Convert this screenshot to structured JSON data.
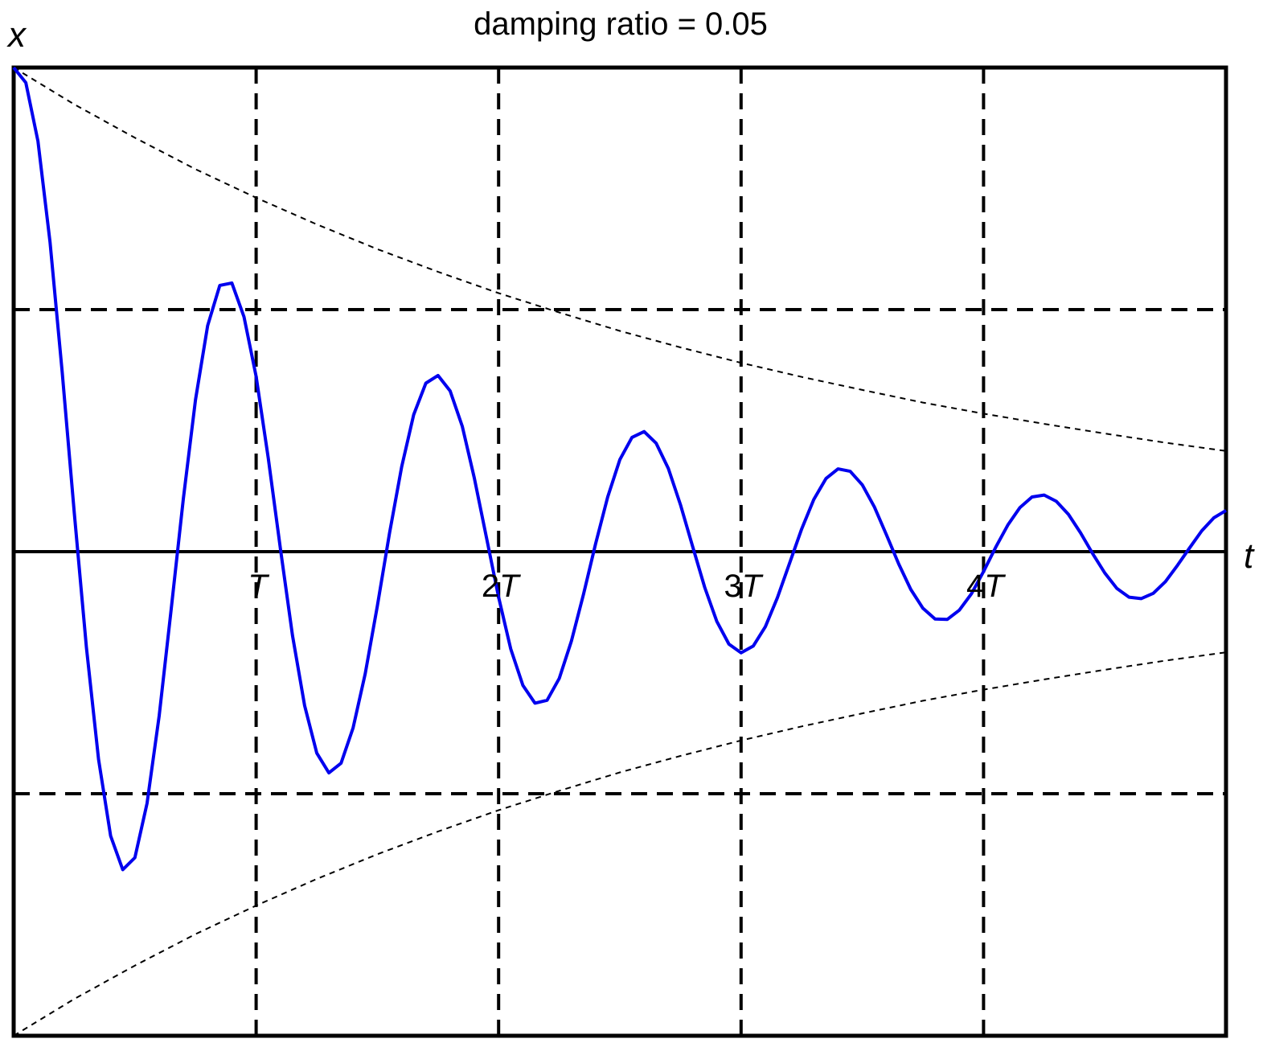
{
  "chart_data": {
    "type": "line",
    "title": "damping ratio = 0.05",
    "xlabel": "t",
    "ylabel": "x",
    "xlim": [
      0,
      5
    ],
    "ylim": [
      -1,
      1
    ],
    "x_unit": "T",
    "damping_ratio": 0.05,
    "xticks": [
      {
        "value": 1,
        "number": "",
        "symbol": "T"
      },
      {
        "value": 2,
        "number": "2",
        "symbol": "T"
      },
      {
        "value": 3,
        "number": "3",
        "symbol": "T"
      },
      {
        "value": 4,
        "number": "4",
        "symbol": "T"
      }
    ],
    "horizontal_reference_lines": [
      0.5,
      -0.5
    ],
    "vertical_reference_lines": [
      1,
      2,
      3,
      4
    ],
    "grid": false,
    "legend": "none",
    "colors": {
      "response": "#0000ee",
      "envelope": "#000000",
      "axes": "#000000"
    },
    "series": [
      {
        "kind": "response",
        "x": [
          0,
          0.05,
          0.1,
          0.15,
          0.2,
          0.25,
          0.3,
          0.35,
          0.4,
          0.45,
          0.5,
          0.55,
          0.6,
          0.65,
          0.7,
          0.75,
          0.8,
          0.85,
          0.9,
          0.95,
          1.0,
          1.05,
          1.1,
          1.15,
          1.2,
          1.25,
          1.3,
          1.35,
          1.4,
          1.45,
          1.5,
          1.55,
          1.6,
          1.65,
          1.7,
          1.75,
          1.8,
          1.85,
          1.9,
          1.95,
          2.0,
          2.05,
          2.1,
          2.15,
          2.2,
          2.25,
          2.3,
          2.35,
          2.4,
          2.45,
          2.5,
          2.55,
          2.6,
          2.65,
          2.7,
          2.75,
          2.8,
          2.85,
          2.9,
          2.95,
          3.0,
          3.05,
          3.1,
          3.15,
          3.2,
          3.25,
          3.3,
          3.35,
          3.4,
          3.45,
          3.5,
          3.55,
          3.6,
          3.65,
          3.7,
          3.75,
          3.8,
          3.85,
          3.9,
          3.95,
          4.0,
          4.05,
          4.1,
          4.15,
          4.2,
          4.25,
          4.3,
          4.35,
          4.4,
          4.45,
          4.5,
          4.55,
          4.6,
          4.65,
          4.7,
          4.75,
          4.8,
          4.85,
          4.9,
          4.95,
          5.0
        ],
        "y": [
          1,
          0.969,
          0.848,
          0.64,
          0.372,
          0.08,
          -0.198,
          -0.429,
          -0.587,
          -0.657,
          -0.632,
          -0.52,
          -0.339,
          -0.118,
          0.11,
          0.314,
          0.467,
          0.55,
          0.555,
          0.485,
          0.362,
          0.193,
          0.006,
          -0.173,
          -0.318,
          -0.416,
          -0.457,
          -0.437,
          -0.364,
          -0.252,
          -0.112,
          0.038,
          0.175,
          0.283,
          0.348,
          0.364,
          0.332,
          0.259,
          0.152,
          0.029,
          -0.094,
          -0.201,
          -0.276,
          -0.313,
          -0.307,
          -0.262,
          -0.185,
          -0.088,
          0.016,
          0.113,
          0.19,
          0.236,
          0.248,
          0.224,
          0.172,
          0.097,
          0.011,
          -0.074,
          -0.144,
          -0.191,
          -0.209,
          -0.195,
          -0.155,
          -0.095,
          -0.024,
          0.047,
          0.108,
          0.151,
          0.171,
          0.166,
          0.138,
          0.092,
          0.034,
          -0.025,
          -0.078,
          -0.117,
          -0.139,
          -0.14,
          -0.121,
          -0.087,
          -0.041,
          0.009,
          0.055,
          0.091,
          0.113,
          0.117,
          0.104,
          0.077,
          0.039,
          -0.004,
          -0.044,
          -0.076,
          -0.094,
          -0.097,
          -0.086,
          -0.062,
          -0.028,
          0.008,
          0.043,
          0.07,
          0.085
        ]
      },
      {
        "kind": "upper envelope",
        "x": [
          0,
          0.25,
          0.5,
          0.75,
          1.0,
          1.25,
          1.5,
          1.75,
          2.0,
          2.25,
          2.5,
          2.75,
          3.0,
          3.25,
          3.5,
          3.75,
          4.0,
          4.25,
          4.5,
          4.75,
          5.0
        ],
        "y": [
          1,
          0.924,
          0.855,
          0.79,
          0.731,
          0.676,
          0.625,
          0.578,
          0.534,
          0.494,
          0.456,
          0.422,
          0.39,
          0.361,
          0.334,
          0.308,
          0.285,
          0.264,
          0.244,
          0.225,
          0.208
        ]
      },
      {
        "kind": "lower envelope",
        "x": [
          0,
          0.25,
          0.5,
          0.75,
          1.0,
          1.25,
          1.5,
          1.75,
          2.0,
          2.25,
          2.5,
          2.75,
          3.0,
          3.25,
          3.5,
          3.75,
          4.0,
          4.25,
          4.5,
          4.75,
          5.0
        ],
        "y": [
          -1,
          -0.924,
          -0.855,
          -0.79,
          -0.731,
          -0.676,
          -0.625,
          -0.578,
          -0.534,
          -0.494,
          -0.456,
          -0.422,
          -0.39,
          -0.361,
          -0.334,
          -0.308,
          -0.285,
          -0.264,
          -0.244,
          -0.225,
          -0.208
        ]
      }
    ]
  }
}
